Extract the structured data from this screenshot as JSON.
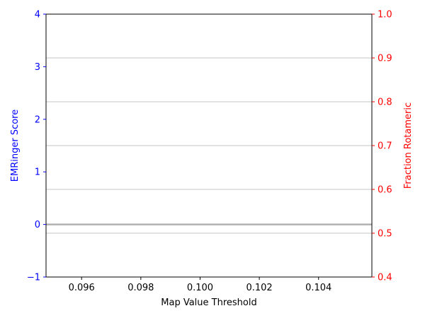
{
  "chart_data": {
    "type": "line",
    "xlabel": "Map Value Threshold",
    "ylabel_left": "EMRinger Score",
    "ylabel_right": "Fraction Rotameric",
    "xlim": [
      0.0948,
      0.1058
    ],
    "x_ticks": [
      "0.096",
      "0.098",
      "0.100",
      "0.102",
      "0.104"
    ],
    "x_tick_values": [
      0.096,
      0.098,
      0.1,
      0.102,
      0.104
    ],
    "ylim_left": [
      -1,
      4
    ],
    "y_ticks_left": [
      "−1",
      "0",
      "1",
      "2",
      "3",
      "4"
    ],
    "y_tick_values_left": [
      -1,
      0,
      1,
      2,
      3,
      4
    ],
    "ylim_right": [
      0.4,
      1.0
    ],
    "y_ticks_right": [
      "0.4",
      "0.5",
      "0.6",
      "0.7",
      "0.8",
      "0.9",
      "1.0"
    ],
    "y_tick_values_right": [
      0.4,
      0.5,
      0.6,
      0.7,
      0.8,
      0.9,
      1.0
    ],
    "grid": "horizontal, right axis",
    "reference_line": {
      "axis": "left",
      "y": 0
    },
    "colors": {
      "left_axis": "#0000ff",
      "right_axis": "#ff0000",
      "grid": "#b0b0b0",
      "reference_line": "#b0b0b0",
      "frame": "#000000"
    }
  }
}
